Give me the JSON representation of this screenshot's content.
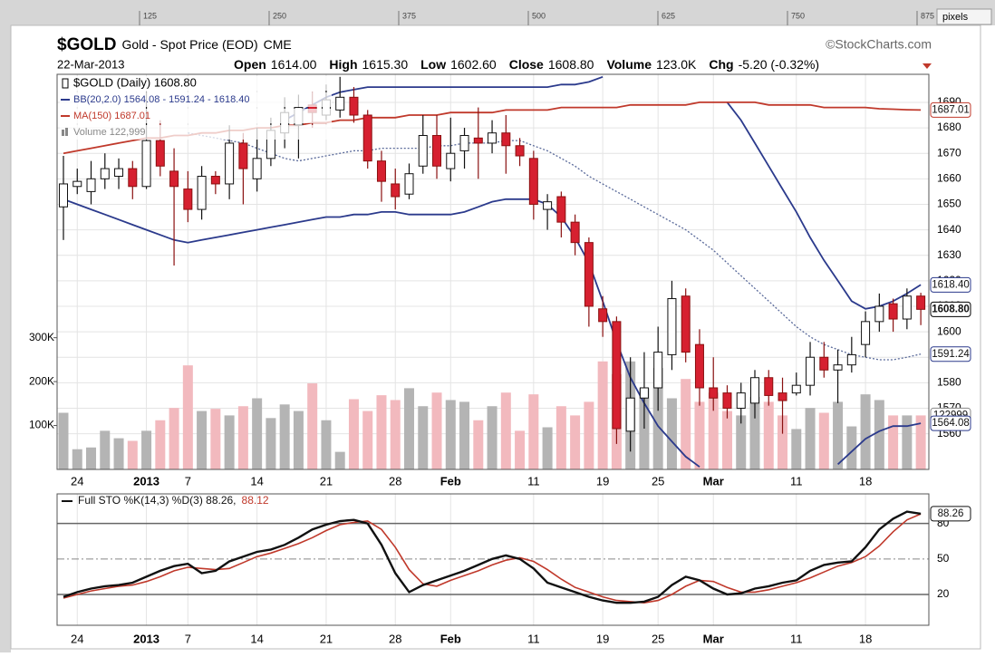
{
  "ruler": {
    "ticks": [
      125,
      250,
      375,
      500,
      625,
      750,
      875
    ],
    "unit": "pixels"
  },
  "chart_data": [
    {
      "type": "candlestick",
      "title": "$GOLD",
      "subtitle": "Gold - Spot Price (EOD)",
      "exchange": "CME",
      "source": "©StockCharts.com",
      "date": "22-Mar-2013",
      "stats": [
        {
          "label": "Open",
          "value": "1614.00"
        },
        {
          "label": "High",
          "value": "1615.30"
        },
        {
          "label": "Low",
          "value": "1602.60"
        },
        {
          "label": "Close",
          "value": "1608.80"
        },
        {
          "label": "Volume",
          "value": "123.0K"
        },
        {
          "label": "Chg",
          "value": "-5.20 (-0.32%)"
        }
      ],
      "legend": [
        {
          "text": "$GOLD (Daily) 1608.80",
          "color": "#000000"
        },
        {
          "text": "BB(20,2.0) 1564.08 - 1591.24 - 1618.40",
          "color": "#2b3a8c"
        },
        {
          "text": "MA(150) 1687.01",
          "color": "#c0392b"
        },
        {
          "text": "Volume 122,999",
          "color": "#888888"
        }
      ],
      "categories": [
        null,
        "24",
        null,
        null,
        null,
        null,
        "2013",
        null,
        null,
        "7",
        null,
        null,
        null,
        null,
        "14",
        null,
        null,
        null,
        null,
        "21",
        null,
        null,
        null,
        null,
        "28",
        null,
        null,
        null,
        "Feb",
        null,
        null,
        null,
        null,
        null,
        "11",
        null,
        null,
        null,
        null,
        "19",
        null,
        null,
        null,
        "25",
        null,
        null,
        null,
        "Mar",
        null,
        null,
        null,
        null,
        null,
        "11",
        null,
        null,
        null,
        null,
        "18",
        null,
        null,
        null,
        null
      ],
      "open": [
        1649,
        1657,
        1655,
        1660,
        1661,
        1664,
        1657,
        1675,
        1663,
        1656,
        1648,
        1661,
        1658,
        1674,
        1660,
        1668,
        1678,
        1681,
        1689,
        1685,
        1687,
        1692,
        1685,
        1667,
        1658,
        1654,
        1665,
        1677,
        1664,
        1671,
        1676,
        1674,
        1678,
        1673,
        1668,
        1648,
        1653,
        1643,
        1635,
        1609,
        1604,
        1561,
        1574,
        1578,
        1591,
        1614,
        1595,
        1578,
        1576,
        1570,
        1572,
        1582,
        1576,
        1576,
        1579,
        1590,
        1585,
        1587,
        1595,
        1604,
        1611,
        1605,
        1614
      ],
      "high": [
        1669,
        1664,
        1667,
        1670,
        1668,
        1667,
        1694,
        1683,
        1672,
        1663,
        1665,
        1663,
        1681,
        1678,
        1680,
        1684,
        1692,
        1693,
        1694,
        1697,
        1700,
        1696,
        1687,
        1671,
        1664,
        1666,
        1685,
        1685,
        1684,
        1680,
        1688,
        1683,
        1685,
        1676,
        1671,
        1654,
        1655,
        1646,
        1637,
        1614,
        1606,
        1590,
        1592,
        1602,
        1620,
        1617,
        1601,
        1590,
        1579,
        1580,
        1585,
        1585,
        1582,
        1584,
        1596,
        1596,
        1593,
        1598,
        1608,
        1615,
        1613,
        1617,
        1615.3
      ],
      "low": [
        1636,
        1654,
        1650,
        1656,
        1656,
        1652,
        1656,
        1661,
        1626,
        1643,
        1644,
        1654,
        1652,
        1650,
        1655,
        1665,
        1672,
        1668,
        1680,
        1683,
        1684,
        1682,
        1664,
        1651,
        1648,
        1652,
        1662,
        1660,
        1659,
        1664,
        1660,
        1670,
        1662,
        1665,
        1644,
        1640,
        1637,
        1630,
        1602,
        1598,
        1556,
        1553,
        1562,
        1569,
        1585,
        1588,
        1571,
        1569,
        1566,
        1564,
        1566,
        1571,
        1560,
        1575,
        1575,
        1582,
        1572,
        1584,
        1590,
        1600,
        1600,
        1601,
        1602.6
      ],
      "close": [
        1658,
        1659,
        1660,
        1664,
        1664,
        1657,
        1675,
        1665,
        1657,
        1648,
        1661,
        1658,
        1674,
        1664,
        1668,
        1679,
        1686,
        1688,
        1686,
        1691,
        1692,
        1685,
        1667,
        1659,
        1653,
        1662,
        1677,
        1665,
        1670,
        1677,
        1674,
        1678,
        1673,
        1669,
        1650,
        1651,
        1643,
        1635,
        1610,
        1604,
        1562,
        1574,
        1578,
        1592,
        1613,
        1592,
        1578,
        1574,
        1570,
        1576,
        1582,
        1575,
        1573,
        1579,
        1590,
        1585,
        1587,
        1591,
        1604,
        1610,
        1605,
        1614,
        1608.8
      ],
      "volume": [
        129000,
        46000,
        50000,
        88000,
        71000,
        65000,
        88000,
        112000,
        140000,
        237000,
        133000,
        138000,
        123000,
        144000,
        162000,
        117000,
        148000,
        133000,
        196000,
        112000,
        40000,
        160000,
        133000,
        169000,
        158000,
        185000,
        144000,
        175000,
        158000,
        154000,
        112000,
        144000,
        175000,
        88000,
        171000,
        96000,
        144000,
        123000,
        154000,
        246000,
        217000,
        246000,
        185000,
        231000,
        162000,
        206000,
        154000,
        175000,
        133000,
        123000,
        165000,
        154000,
        123000,
        92000,
        140000,
        129000,
        154000,
        98000,
        171000,
        158000,
        123000,
        123000,
        122999
      ],
      "up_color": "#ffffff",
      "down_color": "#d62030",
      "volume_up_color": "#b4b4b4",
      "volume_down_color": "#f2b9be",
      "series": [
        {
          "color": "#2b3a8c",
          "dash": false,
          "values": [
            null,
            null,
            null,
            null,
            null,
            null,
            null,
            null,
            null,
            null,
            null,
            null,
            null,
            null,
            null,
            null,
            1683,
            1686,
            1689,
            1692,
            1694,
            1695,
            1696,
            1696,
            1696,
            1696,
            1696,
            1696,
            1696,
            1696,
            1696,
            1696,
            1696,
            1696,
            1696,
            1696,
            1697,
            1697,
            1698,
            1700,
            null,
            null,
            null,
            null,
            null,
            null,
            null,
            null,
            1690,
            1683,
            1674,
            1665,
            1656,
            1647,
            1637,
            1628,
            1620,
            1612,
            1609,
            1610,
            1612,
            1615,
            1618.4
          ]
        },
        {
          "color": "#5a6a9a",
          "dash": true,
          "values": [
            null,
            null,
            null,
            null,
            null,
            null,
            null,
            null,
            null,
            1678,
            1677,
            1676,
            1675,
            1674,
            1672,
            1670,
            1668,
            1667,
            1668,
            1669,
            1670,
            1671,
            1671,
            1672,
            1672,
            1672,
            1672,
            1673,
            1673,
            1674,
            1674,
            1674,
            1675,
            1675,
            1673,
            1671,
            1668,
            1665,
            1661,
            1658,
            1655,
            1652,
            1649,
            1646,
            1643,
            1640,
            1636,
            1632,
            1627,
            1622,
            1617,
            1612,
            1607,
            1602,
            1598,
            1595,
            1593,
            1591,
            1590,
            1589,
            1589,
            1590,
            1591.24
          ]
        },
        {
          "color": "#2b3a8c",
          "dash": false,
          "values": [
            1652,
            1650,
            1648,
            1646,
            1644,
            1642,
            1640,
            1638,
            1636,
            1635,
            1636,
            1637,
            1638,
            1639,
            1640,
            1641,
            1642,
            1643,
            1644,
            1645,
            1645,
            1646,
            1646,
            1647,
            1647,
            1646,
            1646,
            1646,
            1646,
            1647,
            1649,
            1651,
            1652,
            1652,
            1652,
            1650,
            1645,
            1637,
            1627,
            1612,
            1596,
            1582,
            1572,
            1563,
            1557,
            1551,
            1547,
            null,
            null,
            null,
            null,
            null,
            null,
            null,
            null,
            null,
            1548,
            1553,
            1558,
            1561,
            1563,
            1563,
            1564.08
          ]
        },
        {
          "color": "#c0392b",
          "dash": false,
          "values": [
            1670,
            1671,
            1672,
            1673,
            1674,
            1675,
            1676,
            1676,
            1677,
            1677,
            1678,
            1678,
            1679,
            1679,
            1680,
            1680,
            1681,
            1681,
            1682,
            1682,
            1683,
            1683,
            1684,
            1684,
            1684,
            1685,
            1685,
            1685,
            1686,
            1686,
            1686,
            1686,
            1687,
            1687,
            1687,
            1687,
            1688,
            1688,
            1688,
            1688,
            1688,
            1689,
            1689,
            1689,
            1689,
            1689,
            1690,
            1690,
            1690,
            1690,
            1690,
            1689,
            1689,
            1689,
            1689,
            1688,
            1688,
            1688,
            1688,
            1687.5,
            1687.3,
            1687.1,
            1687.01
          ]
        }
      ],
      "ylim": [
        1546,
        1701
      ],
      "yticks": [
        1560,
        1570,
        1580,
        1590,
        1600,
        1610,
        1620,
        1630,
        1640,
        1650,
        1660,
        1670,
        1680,
        1690
      ],
      "y2lim": [
        0,
        900000
      ],
      "y2ticks": [
        {
          "value": 100000,
          "label": "100K"
        },
        {
          "value": 200000,
          "label": "200K"
        },
        {
          "value": 300000,
          "label": "300K"
        }
      ],
      "grid": true,
      "tags": [
        {
          "value": 1687.01,
          "color": "#c0392b"
        },
        {
          "value": 1618.4,
          "label": "1618.40",
          "color": "#2b3a8c"
        },
        {
          "value": 1608.8,
          "label": "1608.80",
          "color": "#000000",
          "bold": true
        },
        {
          "value": 1591.24,
          "color": "#2b3a8c"
        },
        {
          "value": 122999,
          "axis": "y2",
          "color": "#888888"
        },
        {
          "value": 1564.08,
          "color": "#2b3a8c"
        }
      ]
    },
    {
      "type": "line",
      "legend": "Full STO %K(14,3) %D(3) 88.26,",
      "legend_d": "88.12",
      "categories": [
        null,
        "24",
        null,
        null,
        null,
        null,
        "2013",
        null,
        null,
        "7",
        null,
        null,
        null,
        null,
        "14",
        null,
        null,
        null,
        null,
        "21",
        null,
        null,
        null,
        null,
        "28",
        null,
        null,
        null,
        "Feb",
        null,
        null,
        null,
        null,
        null,
        "11",
        null,
        null,
        null,
        null,
        "19",
        null,
        null,
        null,
        "25",
        null,
        null,
        null,
        "Mar",
        null,
        null,
        null,
        null,
        null,
        "11",
        null,
        null,
        null,
        null,
        "18",
        null,
        null,
        null,
        null
      ],
      "series": [
        {
          "color": "#c0392b",
          "values": [
            17,
            20,
            23,
            25,
            27,
            28,
            31,
            35,
            40,
            43,
            42,
            41,
            42,
            47,
            52,
            55,
            59,
            63,
            68,
            74,
            79,
            81,
            82,
            75,
            60,
            41,
            29,
            27,
            32,
            36,
            40,
            45,
            49,
            51,
            48,
            41,
            33,
            26,
            22,
            18,
            15,
            14,
            13,
            15,
            20,
            27,
            32,
            31,
            26,
            22,
            22,
            24,
            27,
            30,
            34,
            39,
            44,
            47,
            52,
            61,
            73,
            83,
            88.12
          ]
        },
        {
          "color": "#111111",
          "values": [
            18,
            22,
            25,
            27,
            28,
            30,
            35,
            40,
            44,
            46,
            38,
            40,
            48,
            52,
            56,
            58,
            62,
            68,
            75,
            79,
            82,
            83,
            80,
            62,
            38,
            22,
            28,
            32,
            36,
            40,
            45,
            50,
            53,
            50,
            42,
            30,
            26,
            22,
            18,
            15,
            13,
            13,
            14,
            18,
            28,
            35,
            32,
            25,
            20,
            21,
            25,
            27,
            30,
            32,
            40,
            45,
            47,
            48,
            60,
            75,
            84,
            90,
            88.26
          ]
        }
      ],
      "ylim": [
        -6,
        105
      ],
      "yticks": [
        20,
        50,
        80
      ],
      "grid": true,
      "tags": [
        {
          "value": 88.26,
          "color": "#111111"
        }
      ]
    }
  ]
}
